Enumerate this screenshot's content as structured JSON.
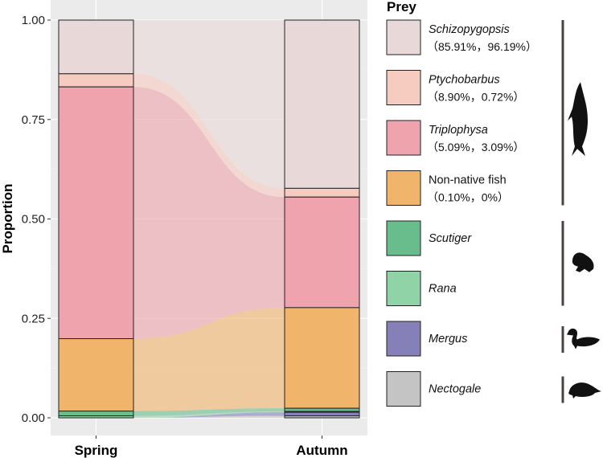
{
  "chart_data": {
    "type": "alluvial-stacked-bar",
    "ylabel": "Proportion",
    "xlabel": "",
    "categories": [
      "Spring",
      "Autumn"
    ],
    "ylim": [
      0,
      1
    ],
    "yticks": [
      "0.00",
      "0.25",
      "0.50",
      "0.75",
      "1.00"
    ],
    "ytick_values": [
      0,
      0.25,
      0.5,
      0.75,
      1
    ],
    "legend_title": "Prey",
    "series": [
      {
        "name": "Schizopygopsis",
        "italic": true,
        "sub": "（85.91%，96.19%）",
        "color": "#e9d8d8",
        "values": [
          0.135,
          0.423
        ]
      },
      {
        "name": "Ptychobarbus",
        "italic": true,
        "sub": "（8.90%，0.72%）",
        "color": "#f6cbc0",
        "values": [
          0.033,
          0.022
        ]
      },
      {
        "name": "Triplophysa",
        "italic": true,
        "sub": "（5.09%，3.09%）",
        "color": "#eea3ad",
        "values": [
          0.633,
          0.278
        ]
      },
      {
        "name": "Non-native fish",
        "italic": false,
        "sub": "（0.10%，0%）",
        "color": "#f0b46a",
        "values": [
          0.182,
          0.253
        ]
      },
      {
        "name": "Scutiger",
        "italic": true,
        "sub": "",
        "color": "#69bd8c",
        "values": [
          0.012,
          0.008
        ]
      },
      {
        "name": "Rana",
        "italic": true,
        "sub": "",
        "color": "#8fd3a6",
        "values": [
          0.005,
          0.002
        ]
      },
      {
        "name": "Mergus",
        "italic": true,
        "sub": "",
        "color": "#8680b9",
        "values": [
          0.0,
          0.009
        ]
      },
      {
        "name": "Nectogale",
        "italic": true,
        "sub": "",
        "color": "#c4c4c4",
        "values": [
          0.0,
          0.005
        ]
      }
    ],
    "groups": [
      {
        "name": "fish-silhouette",
        "members": [
          0,
          3
        ]
      },
      {
        "name": "frog-silhouette",
        "members": [
          4,
          5
        ]
      },
      {
        "name": "bird-silhouette",
        "members": [
          6,
          6
        ]
      },
      {
        "name": "shrew-silhouette",
        "members": [
          7,
          7
        ]
      }
    ]
  }
}
